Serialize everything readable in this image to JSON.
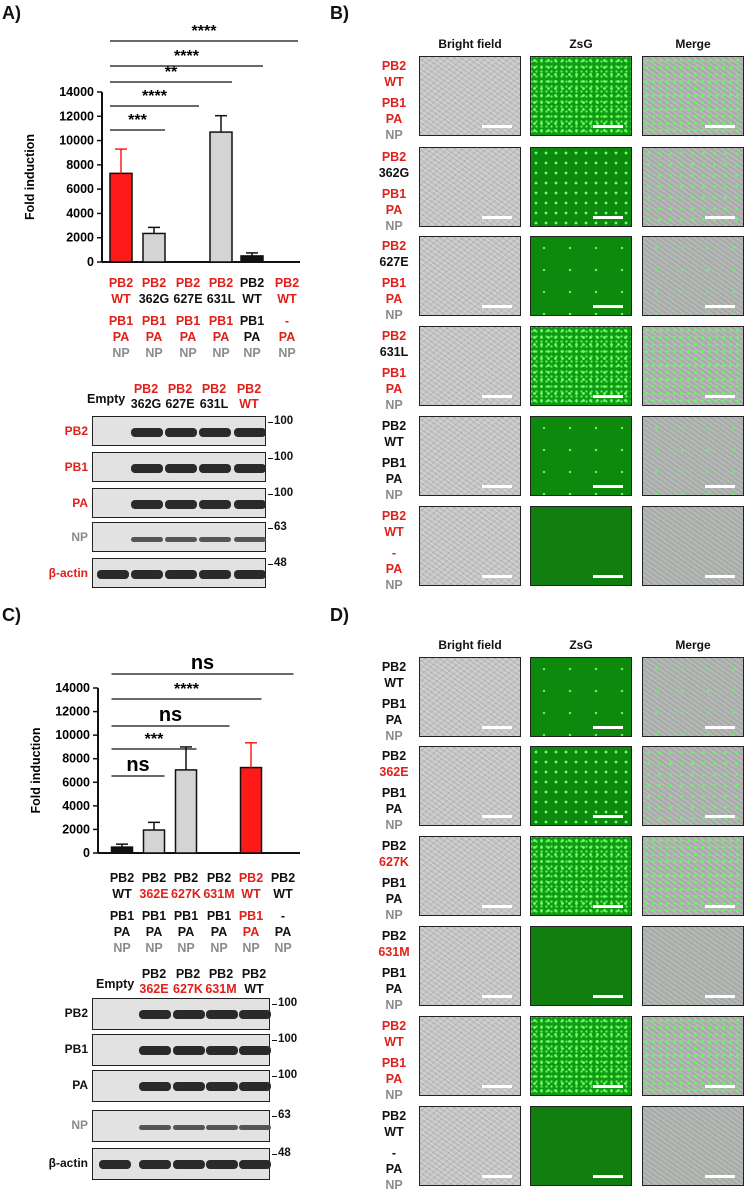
{
  "colors": {
    "red": "#e0201a",
    "gray": "#8c8c8c",
    "black": "#111111",
    "bar_gray": "#d4d4d4"
  },
  "panelA": {
    "label": "A)",
    "chart_data": {
      "type": "bar",
      "ylabel": "Fold induction",
      "ylim": [
        0,
        14000
      ],
      "yticks": [
        "0",
        "2000",
        "4000",
        "6000",
        "8000",
        "10000",
        "12000",
        "14000"
      ],
      "values": [
        7300,
        2350,
        0,
        10700,
        500,
        0
      ],
      "errors": [
        2000,
        500,
        0,
        1350,
        250,
        0
      ],
      "bar_colors": [
        "#ff1a1a",
        "#d4d4d4",
        "#d4d4d4",
        "#d4d4d4",
        "#111111",
        "#111111"
      ],
      "significance": [
        {
          "text": "***",
          "from": 0,
          "to": 1
        },
        {
          "text": "****",
          "from": 0,
          "to": 2
        },
        {
          "text": "**",
          "from": 0,
          "to": 3
        },
        {
          "text": "****",
          "from": 0,
          "to": 4
        },
        {
          "text": "****",
          "from": 0,
          "to": 5
        }
      ],
      "categories": [
        [
          {
            "t": "PB2",
            "c": "red"
          },
          {
            "t": "WT",
            "c": "red"
          },
          {
            "t": "PB1",
            "c": "red"
          },
          {
            "t": "PA",
            "c": "red"
          },
          {
            "t": "NP",
            "c": "gray"
          }
        ],
        [
          {
            "t": "PB2",
            "c": "red"
          },
          {
            "t": "362G",
            "c": "black"
          },
          {
            "t": "PB1",
            "c": "red"
          },
          {
            "t": "PA",
            "c": "red"
          },
          {
            "t": "NP",
            "c": "gray"
          }
        ],
        [
          {
            "t": "PB2",
            "c": "red"
          },
          {
            "t": "627E",
            "c": "black"
          },
          {
            "t": "PB1",
            "c": "red"
          },
          {
            "t": "PA",
            "c": "red"
          },
          {
            "t": "NP",
            "c": "gray"
          }
        ],
        [
          {
            "t": "PB2",
            "c": "red"
          },
          {
            "t": "631L",
            "c": "black"
          },
          {
            "t": "PB1",
            "c": "red"
          },
          {
            "t": "PA",
            "c": "red"
          },
          {
            "t": "NP",
            "c": "gray"
          }
        ],
        [
          {
            "t": "PB2",
            "c": "black"
          },
          {
            "t": "WT",
            "c": "black"
          },
          {
            "t": "PB1",
            "c": "black"
          },
          {
            "t": "PA",
            "c": "black"
          },
          {
            "t": "NP",
            "c": "gray"
          }
        ],
        [
          {
            "t": "PB2",
            "c": "red"
          },
          {
            "t": "WT",
            "c": "red"
          },
          {
            "t": "-",
            "c": "red"
          },
          {
            "t": "PA",
            "c": "red"
          },
          {
            "t": "NP",
            "c": "gray"
          }
        ]
      ]
    },
    "blot": {
      "empty": "Empty",
      "lanes": [
        {
          "top": "PB2",
          "bottom": "362G",
          "top_c": "red",
          "bottom_c": "black"
        },
        {
          "top": "PB2",
          "bottom": "627E",
          "top_c": "red",
          "bottom_c": "black"
        },
        {
          "top": "PB2",
          "bottom": "631L",
          "top_c": "red",
          "bottom_c": "black"
        },
        {
          "top": "PB2",
          "bottom": "WT",
          "top_c": "red",
          "bottom_c": "red"
        }
      ],
      "rows": [
        {
          "name": "PB2",
          "c": "red",
          "mw": "100"
        },
        {
          "name": "PB1",
          "c": "red",
          "mw": "100"
        },
        {
          "name": "PA",
          "c": "red",
          "mw": "100"
        },
        {
          "name": "NP",
          "c": "gray",
          "mw": "63"
        },
        {
          "name": "β-actin",
          "c": "red",
          "mw": "48"
        }
      ]
    }
  },
  "panelB": {
    "label": "B)",
    "headers": [
      "Bright field",
      "ZsG",
      "Merge"
    ],
    "rows": [
      {
        "caption": [
          {
            "t": "PB2",
            "c": "red"
          },
          {
            "t": "WT",
            "c": "red"
          },
          {
            "t": "PB1",
            "c": "red"
          },
          {
            "t": "PA",
            "c": "red"
          },
          {
            "t": "NP",
            "c": "gray"
          }
        ],
        "level": "bright"
      },
      {
        "caption": [
          {
            "t": "PB2",
            "c": "red"
          },
          {
            "t": "362G",
            "c": "black"
          },
          {
            "t": "PB1",
            "c": "red"
          },
          {
            "t": "PA",
            "c": "red"
          },
          {
            "t": "NP",
            "c": "gray"
          }
        ],
        "level": "med"
      },
      {
        "caption": [
          {
            "t": "PB2",
            "c": "red"
          },
          {
            "t": "627E",
            "c": "black"
          },
          {
            "t": "PB1",
            "c": "red"
          },
          {
            "t": "PA",
            "c": "red"
          },
          {
            "t": "NP",
            "c": "gray"
          }
        ],
        "level": "sparse"
      },
      {
        "caption": [
          {
            "t": "PB2",
            "c": "red"
          },
          {
            "t": "631L",
            "c": "black"
          },
          {
            "t": "PB1",
            "c": "red"
          },
          {
            "t": "PA",
            "c": "red"
          },
          {
            "t": "NP",
            "c": "gray"
          }
        ],
        "level": "bright"
      },
      {
        "caption": [
          {
            "t": "PB2",
            "c": "black"
          },
          {
            "t": "WT",
            "c": "black"
          },
          {
            "t": "PB1",
            "c": "black"
          },
          {
            "t": "PA",
            "c": "black"
          },
          {
            "t": "NP",
            "c": "gray"
          }
        ],
        "level": "sparse"
      },
      {
        "caption": [
          {
            "t": "PB2",
            "c": "red"
          },
          {
            "t": "WT",
            "c": "red"
          },
          {
            "t": "-",
            "c": "red"
          },
          {
            "t": "PA",
            "c": "red"
          },
          {
            "t": "NP",
            "c": "gray"
          }
        ],
        "level": "none"
      }
    ]
  },
  "panelC": {
    "label": "C)",
    "chart_data": {
      "type": "bar",
      "ylabel": "Fold induction",
      "ylim": [
        0,
        14000
      ],
      "yticks": [
        "0",
        "2000",
        "4000",
        "6000",
        "8000",
        "10000",
        "12000",
        "14000"
      ],
      "values": [
        500,
        1950,
        7050,
        0,
        7250,
        0
      ],
      "errors": [
        250,
        650,
        1950,
        0,
        2100,
        0
      ],
      "bar_colors": [
        "#111111",
        "#d4d4d4",
        "#d4d4d4",
        "#d4d4d4",
        "#ff1a1a",
        "#111111"
      ],
      "significance": [
        {
          "text": "ns",
          "from": 0,
          "to": 1
        },
        {
          "text": "***",
          "from": 0,
          "to": 2
        },
        {
          "text": "ns",
          "from": 0,
          "to": 3
        },
        {
          "text": "****",
          "from": 0,
          "to": 4
        },
        {
          "text": "ns",
          "from": 0,
          "to": 5
        }
      ],
      "categories": [
        [
          {
            "t": "PB2",
            "c": "black"
          },
          {
            "t": "WT",
            "c": "black"
          },
          {
            "t": "PB1",
            "c": "black"
          },
          {
            "t": "PA",
            "c": "black"
          },
          {
            "t": "NP",
            "c": "gray"
          }
        ],
        [
          {
            "t": "PB2",
            "c": "black"
          },
          {
            "t": "362E",
            "c": "red"
          },
          {
            "t": "PB1",
            "c": "black"
          },
          {
            "t": "PA",
            "c": "black"
          },
          {
            "t": "NP",
            "c": "gray"
          }
        ],
        [
          {
            "t": "PB2",
            "c": "black"
          },
          {
            "t": "627K",
            "c": "red"
          },
          {
            "t": "PB1",
            "c": "black"
          },
          {
            "t": "PA",
            "c": "black"
          },
          {
            "t": "NP",
            "c": "gray"
          }
        ],
        [
          {
            "t": "PB2",
            "c": "black"
          },
          {
            "t": "631M",
            "c": "red"
          },
          {
            "t": "PB1",
            "c": "black"
          },
          {
            "t": "PA",
            "c": "black"
          },
          {
            "t": "NP",
            "c": "gray"
          }
        ],
        [
          {
            "t": "PB2",
            "c": "red"
          },
          {
            "t": "WT",
            "c": "red"
          },
          {
            "t": "PB1",
            "c": "red"
          },
          {
            "t": "PA",
            "c": "red"
          },
          {
            "t": "NP",
            "c": "gray"
          }
        ],
        [
          {
            "t": "PB2",
            "c": "black"
          },
          {
            "t": "WT",
            "c": "black"
          },
          {
            "t": "-",
            "c": "black"
          },
          {
            "t": "PA",
            "c": "black"
          },
          {
            "t": "NP",
            "c": "gray"
          }
        ]
      ]
    },
    "blot": {
      "empty": "Empty",
      "lanes": [
        {
          "top": "PB2",
          "bottom": "362E",
          "top_c": "black",
          "bottom_c": "red"
        },
        {
          "top": "PB2",
          "bottom": "627K",
          "top_c": "black",
          "bottom_c": "red"
        },
        {
          "top": "PB2",
          "bottom": "631M",
          "top_c": "black",
          "bottom_c": "red"
        },
        {
          "top": "PB2",
          "bottom": "WT",
          "top_c": "black",
          "bottom_c": "black"
        }
      ],
      "rows": [
        {
          "name": "PB2",
          "c": "black",
          "mw": "100"
        },
        {
          "name": "PB1",
          "c": "black",
          "mw": "100"
        },
        {
          "name": "PA",
          "c": "black",
          "mw": "100"
        },
        {
          "name": "NP",
          "c": "gray",
          "mw": "63"
        },
        {
          "name": "β-actin",
          "c": "black",
          "mw": "48"
        }
      ]
    }
  },
  "panelD": {
    "label": "D)",
    "headers": [
      "Bright field",
      "ZsG",
      "Merge"
    ],
    "rows": [
      {
        "caption": [
          {
            "t": "PB2",
            "c": "black"
          },
          {
            "t": "WT",
            "c": "black"
          },
          {
            "t": "PB1",
            "c": "black"
          },
          {
            "t": "PA",
            "c": "black"
          },
          {
            "t": "NP",
            "c": "gray"
          }
        ],
        "level": "sparse"
      },
      {
        "caption": [
          {
            "t": "PB2",
            "c": "black"
          },
          {
            "t": "362E",
            "c": "red"
          },
          {
            "t": "PB1",
            "c": "black"
          },
          {
            "t": "PA",
            "c": "black"
          },
          {
            "t": "NP",
            "c": "gray"
          }
        ],
        "level": "med"
      },
      {
        "caption": [
          {
            "t": "PB2",
            "c": "black"
          },
          {
            "t": "627K",
            "c": "red"
          },
          {
            "t": "PB1",
            "c": "black"
          },
          {
            "t": "PA",
            "c": "black"
          },
          {
            "t": "NP",
            "c": "gray"
          }
        ],
        "level": "bright"
      },
      {
        "caption": [
          {
            "t": "PB2",
            "c": "black"
          },
          {
            "t": "631M",
            "c": "red"
          },
          {
            "t": "PB1",
            "c": "black"
          },
          {
            "t": "PA",
            "c": "black"
          },
          {
            "t": "NP",
            "c": "gray"
          }
        ],
        "level": "none"
      },
      {
        "caption": [
          {
            "t": "PB2",
            "c": "red"
          },
          {
            "t": "WT",
            "c": "red"
          },
          {
            "t": "PB1",
            "c": "red"
          },
          {
            "t": "PA",
            "c": "red"
          },
          {
            "t": "NP",
            "c": "gray"
          }
        ],
        "level": "bright"
      },
      {
        "caption": [
          {
            "t": "PB2",
            "c": "black"
          },
          {
            "t": "WT",
            "c": "black"
          },
          {
            "t": "-",
            "c": "black"
          },
          {
            "t": "PA",
            "c": "black"
          },
          {
            "t": "NP",
            "c": "gray"
          }
        ],
        "level": "none"
      }
    ]
  }
}
